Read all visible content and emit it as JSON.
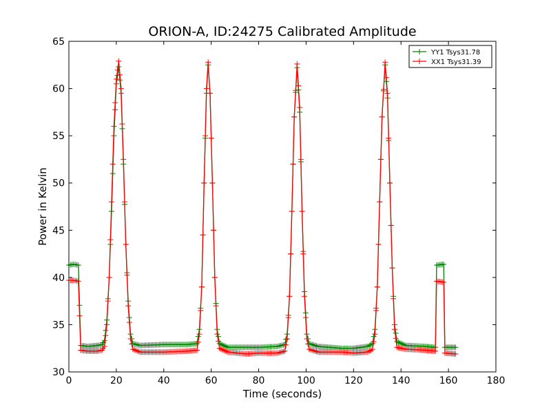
{
  "colors": {
    "yy1": "#008000",
    "xx1": "#ff0000",
    "axes": "#000000",
    "background": "#ffffff"
  },
  "chart_data": {
    "type": "line",
    "title": "ORION-A, ID:24275 Calibrated Amplitude",
    "xlabel": "Time (seconds)",
    "ylabel": "Power in Kelvin",
    "xlim": [
      0,
      180
    ],
    "ylim": [
      30,
      65
    ],
    "xticks": [
      "0",
      "20",
      "40",
      "60",
      "80",
      "100",
      "120",
      "140",
      "160",
      "180"
    ],
    "yticks": [
      "30",
      "35",
      "40",
      "45",
      "50",
      "55",
      "60",
      "65"
    ],
    "grid": false,
    "legend_position": "top-right",
    "marker": "+",
    "series": [
      {
        "name": "YY1 Tsys31.78",
        "color": "#008000",
        "points": [
          [
            0,
            41.3
          ],
          [
            2,
            41.4
          ],
          [
            4,
            41.3
          ],
          [
            5,
            32.8
          ],
          [
            8,
            32.7
          ],
          [
            12,
            32.8
          ],
          [
            14,
            32.9
          ],
          [
            15,
            33.3
          ],
          [
            16,
            35.5
          ],
          [
            17,
            40.0
          ],
          [
            18,
            47.0
          ],
          [
            19,
            55.0
          ],
          [
            20,
            60.5
          ],
          [
            21,
            62.3
          ],
          [
            22,
            59.5
          ],
          [
            23,
            52.0
          ],
          [
            24,
            43.5
          ],
          [
            25,
            37.5
          ],
          [
            26,
            34.0
          ],
          [
            27,
            33.0
          ],
          [
            30,
            32.8
          ],
          [
            40,
            32.9
          ],
          [
            50,
            32.9
          ],
          [
            54,
            33.0
          ],
          [
            55,
            34.5
          ],
          [
            56,
            39.0
          ],
          [
            57,
            50.0
          ],
          [
            58,
            59.5
          ],
          [
            58.7,
            62.5
          ],
          [
            59.5,
            59.5
          ],
          [
            60.5,
            50.0
          ],
          [
            61.5,
            40.0
          ],
          [
            62.5,
            34.5
          ],
          [
            63.5,
            33.0
          ],
          [
            67,
            32.6
          ],
          [
            80,
            32.6
          ],
          [
            88,
            32.7
          ],
          [
            91,
            32.9
          ],
          [
            92,
            34.0
          ],
          [
            93,
            38.0
          ],
          [
            94,
            47.0
          ],
          [
            95,
            57.0
          ],
          [
            96.2,
            62.2
          ],
          [
            97.3,
            57.5
          ],
          [
            98.3,
            47.0
          ],
          [
            99.3,
            38.5
          ],
          [
            100.3,
            34.0
          ],
          [
            101.3,
            33.0
          ],
          [
            105,
            32.7
          ],
          [
            115,
            32.5
          ],
          [
            120,
            32.5
          ],
          [
            126,
            32.7
          ],
          [
            128,
            33.0
          ],
          [
            129,
            34.5
          ],
          [
            130,
            39.0
          ],
          [
            131,
            48.0
          ],
          [
            132,
            57.0
          ],
          [
            133.3,
            62.5
          ],
          [
            134.3,
            59.0
          ],
          [
            135.3,
            50.0
          ],
          [
            136.3,
            41.0
          ],
          [
            137.3,
            35.0
          ],
          [
            138.3,
            33.2
          ],
          [
            142,
            32.8
          ],
          [
            150,
            32.7
          ],
          [
            154.5,
            32.6
          ],
          [
            155,
            41.3
          ],
          [
            158,
            41.4
          ],
          [
            158.5,
            32.6
          ],
          [
            163,
            32.6
          ]
        ]
      },
      {
        "name": "XX1 Tsys31.39",
        "color": "#ff0000",
        "points": [
          [
            0,
            39.7
          ],
          [
            2,
            39.7
          ],
          [
            4,
            39.6
          ],
          [
            5,
            32.3
          ],
          [
            8,
            32.2
          ],
          [
            12,
            32.2
          ],
          [
            14,
            32.3
          ],
          [
            15,
            32.7
          ],
          [
            16,
            35.0
          ],
          [
            17,
            40.0
          ],
          [
            18,
            48.0
          ],
          [
            19,
            56.0
          ],
          [
            20,
            61.0
          ],
          [
            21,
            62.9
          ],
          [
            22,
            60.0
          ],
          [
            23,
            52.5
          ],
          [
            24,
            43.5
          ],
          [
            25,
            37.0
          ],
          [
            26,
            33.5
          ],
          [
            27,
            32.4
          ],
          [
            30,
            32.1
          ],
          [
            40,
            32.1
          ],
          [
            50,
            32.2
          ],
          [
            54,
            32.3
          ],
          [
            55,
            34.0
          ],
          [
            56,
            39.0
          ],
          [
            57,
            50.0
          ],
          [
            58,
            60.0
          ],
          [
            58.7,
            62.8
          ],
          [
            59.5,
            59.5
          ],
          [
            60.5,
            50.0
          ],
          [
            61.5,
            40.0
          ],
          [
            62.5,
            34.0
          ],
          [
            63.5,
            32.5
          ],
          [
            67,
            32.1
          ],
          [
            75,
            31.9
          ],
          [
            80,
            32.0
          ],
          [
            88,
            32.0
          ],
          [
            91,
            32.2
          ],
          [
            92,
            33.5
          ],
          [
            93,
            38.0
          ],
          [
            94,
            47.0
          ],
          [
            95,
            57.0
          ],
          [
            96.2,
            62.6
          ],
          [
            97.3,
            58.0
          ],
          [
            98.3,
            47.0
          ],
          [
            99.3,
            38.0
          ],
          [
            100.3,
            33.5
          ],
          [
            101.3,
            32.4
          ],
          [
            105,
            32.1
          ],
          [
            115,
            32.1
          ],
          [
            120,
            32.0
          ],
          [
            126,
            32.1
          ],
          [
            128,
            32.4
          ],
          [
            129,
            34.0
          ],
          [
            130,
            39.0
          ],
          [
            131,
            48.0
          ],
          [
            132,
            57.0
          ],
          [
            133.3,
            62.8
          ],
          [
            134.3,
            59.5
          ],
          [
            135.3,
            50.0
          ],
          [
            136.3,
            41.0
          ],
          [
            137.3,
            34.5
          ],
          [
            138.3,
            32.6
          ],
          [
            142,
            32.4
          ],
          [
            150,
            32.3
          ],
          [
            154.5,
            32.2
          ],
          [
            155,
            39.6
          ],
          [
            158,
            39.5
          ],
          [
            158.5,
            32.0
          ],
          [
            163,
            31.9
          ]
        ]
      }
    ]
  }
}
